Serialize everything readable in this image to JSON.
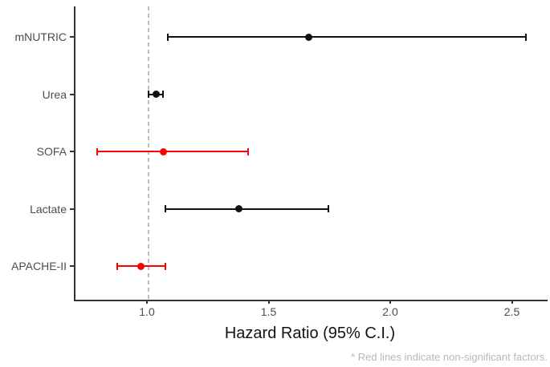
{
  "chart_data": {
    "type": "scatter",
    "variant": "forest-plot",
    "title": "",
    "xlabel": "Hazard Ratio (95% C.I.)",
    "ylabel": "",
    "caption": "* Red lines indicate non-significant factors.",
    "categories": [
      "mNUTRIC",
      "Urea",
      "SOFA",
      "Lactate",
      "APACHE-II"
    ],
    "points": [
      {
        "label": "mNUTRIC",
        "hr": 1.66,
        "ci_low": 1.08,
        "ci_high": 2.55,
        "significant": true
      },
      {
        "label": "Urea",
        "hr": 1.03,
        "ci_low": 1.0,
        "ci_high": 1.06,
        "significant": true
      },
      {
        "label": "SOFA",
        "hr": 1.06,
        "ci_low": 0.79,
        "ci_high": 1.41,
        "significant": false
      },
      {
        "label": "Lactate",
        "hr": 1.37,
        "ci_low": 1.07,
        "ci_high": 1.74,
        "significant": true
      },
      {
        "label": "APACHE-II",
        "hr": 0.97,
        "ci_low": 0.87,
        "ci_high": 1.07,
        "significant": false
      }
    ],
    "x_ticks": [
      {
        "value": 1.0,
        "label": "1.0"
      },
      {
        "value": 1.5,
        "label": "1.5"
      },
      {
        "value": 2.0,
        "label": "2.0"
      },
      {
        "value": 2.5,
        "label": "2.5"
      }
    ],
    "xlim": [
      0.7,
      2.65
    ],
    "reference_line_x": 1.0,
    "grid": false,
    "legend": false,
    "colors": {
      "significant": "#111111",
      "non_significant": "#ff0000",
      "axis_line": "#333333",
      "axis_text": "#4d4d4d",
      "axis_title": "#111111",
      "reference_line": "#bdbdbd",
      "caption_text": "#b8b8b8",
      "background": "#ffffff"
    }
  }
}
